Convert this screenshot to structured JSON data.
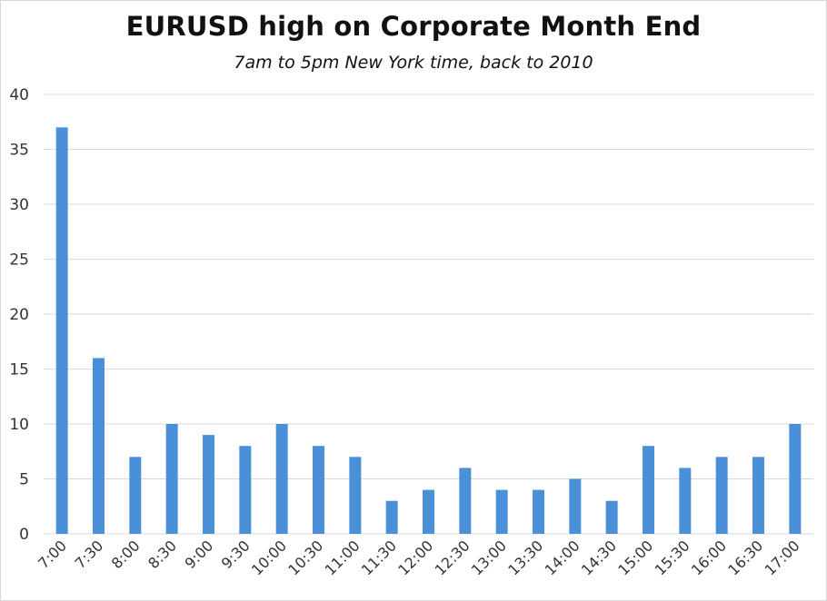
{
  "chart_data": {
    "type": "bar",
    "title": "EURUSD high on Corporate Month End",
    "subtitle": "7am to 5pm New York time, back to 2010",
    "categories": [
      "7:00",
      "7:30",
      "8:00",
      "8:30",
      "9:00",
      "9:30",
      "10:00",
      "10:30",
      "11:00",
      "11:30",
      "12:00",
      "12:30",
      "13:00",
      "13:30",
      "14:00",
      "14:30",
      "15:00",
      "15:30",
      "16:00",
      "16:30",
      "17:00"
    ],
    "values": [
      37,
      16,
      7,
      10,
      9,
      8,
      10,
      8,
      7,
      3,
      4,
      6,
      4,
      4,
      5,
      3,
      8,
      6,
      7,
      7,
      10
    ],
    "xlabel": "",
    "ylabel": "",
    "ylim": [
      0,
      40
    ],
    "yticks": [
      0,
      5,
      10,
      15,
      20,
      25,
      30,
      35,
      40
    ],
    "grid": true,
    "bar_color": "#4a90d9",
    "grid_color": "#d9d9d9"
  }
}
